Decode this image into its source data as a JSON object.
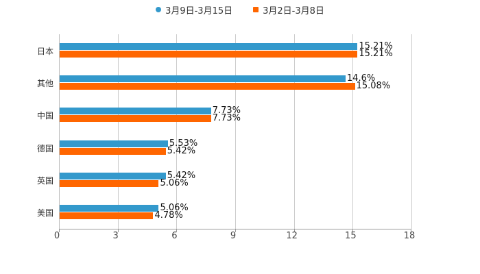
{
  "legend": [
    {
      "label": "3月9日-3月15日",
      "color": "#3399cc",
      "shape": "circle"
    },
    {
      "label": "3月2日-3月8日",
      "color": "#ff6600",
      "shape": "square"
    }
  ],
  "chart_data": {
    "type": "bar",
    "orientation": "horizontal",
    "title": "",
    "xlabel": "",
    "ylabel": "",
    "categories": [
      "日本",
      "其他",
      "中国",
      "德国",
      "英国",
      "美国"
    ],
    "series": [
      {
        "name": "3月9日-3月15日",
        "color": "#3399cc",
        "values": [
          15.21,
          14.6,
          7.73,
          5.53,
          5.42,
          5.06
        ],
        "labels": [
          "15.21%",
          "14.6%",
          "7.73%",
          "5.53%",
          "5.42%",
          "5.06%"
        ]
      },
      {
        "name": "3月2日-3月8日",
        "color": "#ff6600",
        "values": [
          15.21,
          15.08,
          7.73,
          5.42,
          5.06,
          4.78
        ],
        "labels": [
          "15.21%",
          "15.08%",
          "7.73%",
          "5.42%",
          "5.06%",
          "4.78%"
        ]
      }
    ],
    "xlim": [
      0,
      18
    ],
    "xticks": [
      "0",
      "3",
      "6",
      "9",
      "12",
      "15",
      "18"
    ],
    "grid": true,
    "legend_position": "top"
  }
}
